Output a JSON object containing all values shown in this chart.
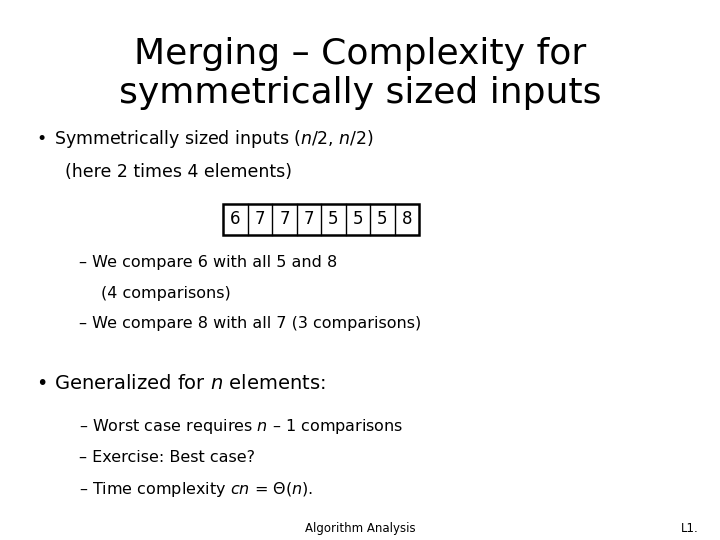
{
  "title_line1": "Merging – Complexity for",
  "title_line2": "symmetrically sized inputs",
  "title_fontsize": 26,
  "bg_color": "#ffffff",
  "text_color": "#000000",
  "bullet1_sub": "(here 2 times 4 elements)",
  "array_values": [
    "6",
    "7",
    "7",
    "7",
    "5",
    "5",
    "5",
    "8"
  ],
  "dash1_line1": "We compare 6 with all 5 and 8",
  "dash1_line2": "(4 comparisons)",
  "dash2": "We compare 8 with all 7 (3 comparisons)",
  "sub2": "Exercise: Best case?",
  "footer_left": "Algorithm Analysis",
  "footer_right": "L1.",
  "endash": "–",
  "bullet": "•",
  "theta": "Θ"
}
